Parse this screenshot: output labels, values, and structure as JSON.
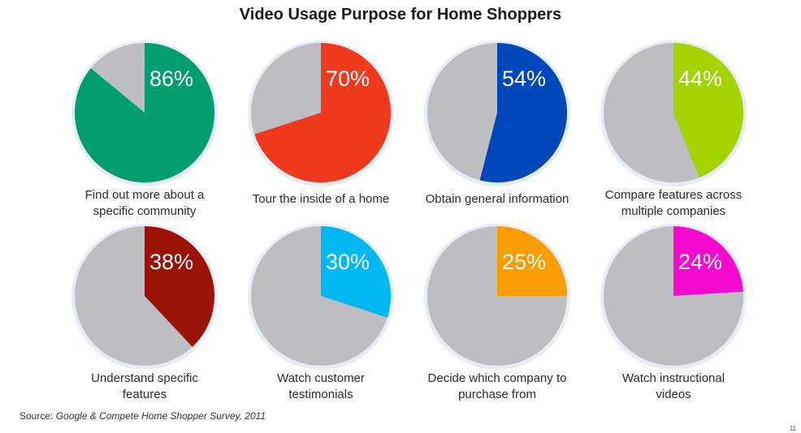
{
  "page": {
    "title": "Video Usage Purpose for Home Shoppers",
    "source_prefix": "Source: ",
    "source_text": "Google & Compete Home Shopper Survey, 2011",
    "page_number": "11"
  },
  "colors": {
    "remainder": "#bdbec2",
    "halo": "#c9d7ea",
    "label_text": "#2b2b2b"
  },
  "chart_data": {
    "type": "pie",
    "title": "Video Usage Purpose for Home Shoppers",
    "unit": "%",
    "categories": [
      "Find out more about a specific community",
      "Tour the inside of a home",
      "Obtain general information",
      "Compare features across multiple companies",
      "Understand specific features",
      "Watch customer testimonials",
      "Decide which company to purchase from",
      "Watch instructional videos"
    ],
    "values": [
      86,
      70,
      54,
      44,
      38,
      30,
      25,
      24
    ],
    "value_labels": [
      "86%",
      "70%",
      "54%",
      "44%",
      "38%",
      "30%",
      "25%",
      "24%"
    ],
    "slice_colors": [
      "#009e6e",
      "#ef3a1e",
      "#0047bb",
      "#a4d400",
      "#9b1206",
      "#00b8f1",
      "#fa9d00",
      "#f70acf"
    ],
    "labels_multiline": [
      [
        "Find out more about a",
        "specific community"
      ],
      [
        "Tour the inside of a home"
      ],
      [
        "Obtain general information"
      ],
      [
        "Compare features across",
        "multiple companies"
      ],
      [
        "Understand specific",
        "features"
      ],
      [
        "Watch customer",
        "testimonials"
      ],
      [
        "Decide which company to",
        "purchase from"
      ],
      [
        "Watch instructional",
        "videos"
      ]
    ]
  }
}
